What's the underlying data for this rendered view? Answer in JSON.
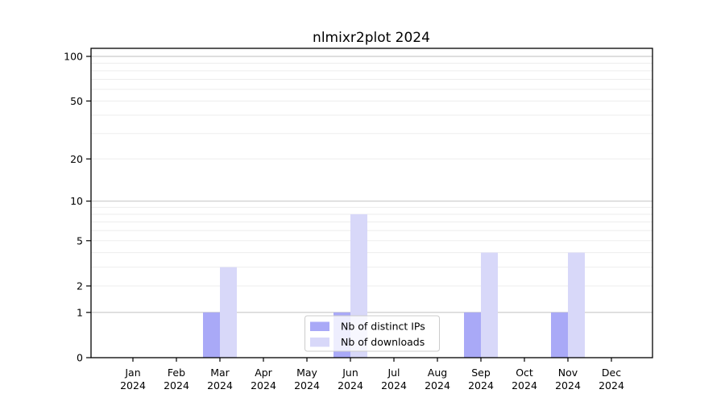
{
  "chart_data": {
    "type": "bar",
    "title": "nlmixr2plot 2024",
    "categories": [
      "Jan 2024",
      "Feb 2024",
      "Mar 2024",
      "Apr 2024",
      "May 2024",
      "Jun 2024",
      "Jul 2024",
      "Aug 2024",
      "Sep 2024",
      "Oct 2024",
      "Nov 2024",
      "Dec 2024"
    ],
    "series": [
      {
        "name": "Nb of distinct IPs",
        "color": "#a9a9f7",
        "values": [
          0,
          0,
          1,
          0,
          0,
          1,
          0,
          0,
          1,
          0,
          1,
          0
        ]
      },
      {
        "name": "Nb of downloads",
        "color": "#d8d8f9",
        "values": [
          0,
          0,
          3,
          0,
          0,
          8,
          0,
          0,
          4,
          0,
          4,
          0
        ]
      }
    ],
    "xlabel": "",
    "ylabel": "",
    "yscale": "log1p",
    "ylim": [
      0,
      100
    ],
    "y_tick_labels": [
      "0",
      "1",
      "2",
      "5",
      "10",
      "20",
      "50",
      "100"
    ],
    "y_decade_gridlines": [
      1,
      10,
      100
    ],
    "y_minor_gridlines": [
      2,
      3,
      4,
      5,
      6,
      7,
      8,
      9,
      20,
      30,
      40,
      50,
      60,
      70,
      80,
      90
    ],
    "grid": true,
    "legend_position": "lower center",
    "colors": {
      "axis": "#000000",
      "grid_decade": "#c9c9c9",
      "grid_minor": "#ededed",
      "legend_border": "#cccccc",
      "legend_bg": "#ffffff"
    }
  }
}
